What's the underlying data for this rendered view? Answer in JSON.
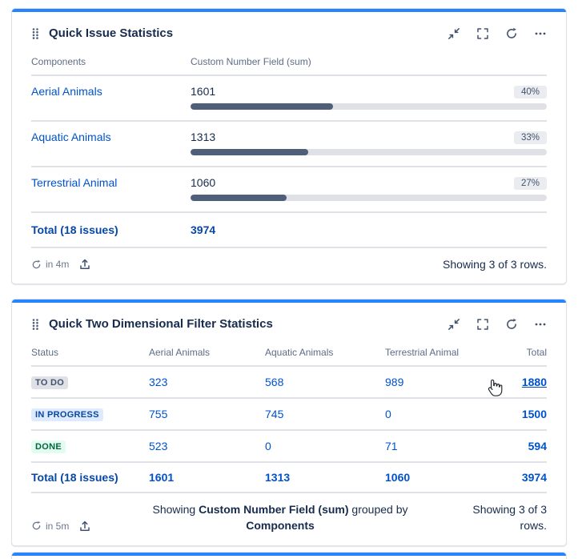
{
  "page": {
    "accent_color": "#2684FF",
    "link_color": "#0052CC",
    "bar_track_color": "#DFE1E6",
    "bar_fill_color": "#505F79"
  },
  "issue_stats": {
    "title": "Quick Issue Statistics",
    "columns": {
      "components": "Components",
      "value": "Custom Number Field (sum)"
    },
    "rows": [
      {
        "component": "Aerial Animals",
        "value": "1601",
        "percent": 40,
        "percent_label": "40%"
      },
      {
        "component": "Aquatic Animals",
        "value": "1313",
        "percent": 33,
        "percent_label": "33%"
      },
      {
        "component": "Terrestrial Animal",
        "value": "1060",
        "percent": 27,
        "percent_label": "27%"
      }
    ],
    "total": {
      "label": "Total (18 issues)",
      "value": "3974"
    },
    "footer": {
      "refresh_in": "in 4m",
      "showing": "Showing 3 of 3 rows."
    }
  },
  "two_dim_stats": {
    "title": "Quick Two Dimensional Filter Statistics",
    "columns": [
      "Status",
      "Aerial Animals",
      "Aquatic Animals",
      "Terrestrial Animal",
      "Total"
    ],
    "statuses": {
      "todo": {
        "label": "TO DO",
        "bg": "#DFE1E6",
        "fg": "#42526E"
      },
      "inprogress": {
        "label": "IN PROGRESS",
        "bg": "#DEEBFF",
        "fg": "#0747A6"
      },
      "done": {
        "label": "DONE",
        "bg": "#E3FCEF",
        "fg": "#006644"
      }
    },
    "rows": [
      {
        "c1": "323",
        "c2": "568",
        "c3": "989",
        "total": "1880"
      },
      {
        "c1": "755",
        "c2": "745",
        "c3": "0",
        "total": "1500"
      },
      {
        "c1": "523",
        "c2": "0",
        "c3": "71",
        "total": "594"
      }
    ],
    "total_row": {
      "label": "Total (18 issues)",
      "c1": "1601",
      "c2": "1313",
      "c3": "1060",
      "total": "3974"
    },
    "footer": {
      "refresh_in": "in 5m",
      "grouped_prefix": "Showing ",
      "grouped_field": "Custom Number Field (sum)",
      "grouped_middle": " grouped by ",
      "grouped_group": "Components",
      "showing": "Showing 3 of 3 rows."
    }
  }
}
